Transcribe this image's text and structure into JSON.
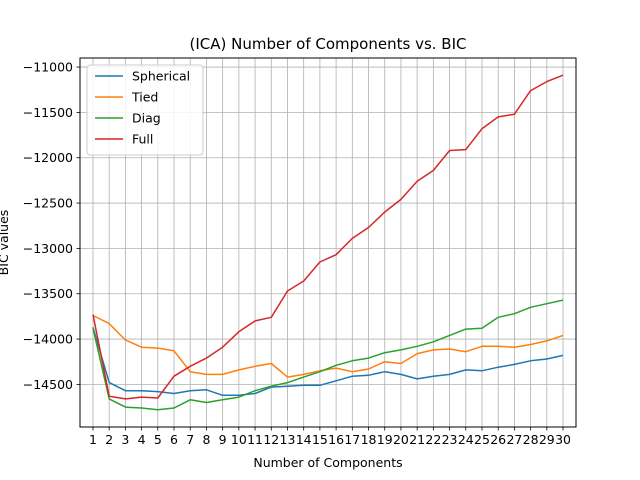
{
  "chart_data": {
    "type": "line",
    "title": "(ICA) Number of Components vs. BIC",
    "xlabel": "Number of Components",
    "ylabel": "BIC values",
    "x": [
      1,
      2,
      3,
      4,
      5,
      6,
      7,
      8,
      9,
      10,
      11,
      12,
      13,
      14,
      15,
      16,
      17,
      18,
      19,
      20,
      21,
      22,
      23,
      24,
      25,
      26,
      27,
      28,
      29,
      30
    ],
    "xlim": [
      0.2,
      30.8
    ],
    "ylim": [
      -14970,
      -10900
    ],
    "yticks": [
      -14500,
      -14000,
      -13500,
      -13000,
      -12500,
      -12000,
      -11500,
      -11000
    ],
    "ytick_labels": [
      "−14500",
      "−14000",
      "−13500",
      "−13000",
      "−12500",
      "−12000",
      "−11500",
      "−11000"
    ],
    "grid": true,
    "legend_position": "top-left",
    "series": [
      {
        "name": "Spherical",
        "color": "#1f77b4",
        "values": [
          -13870,
          -14480,
          -14570,
          -14570,
          -14580,
          -14600,
          -14570,
          -14560,
          -14620,
          -14620,
          -14600,
          -14530,
          -14520,
          -14510,
          -14510,
          -14460,
          -14410,
          -14400,
          -14360,
          -14390,
          -14440,
          -14410,
          -14390,
          -14340,
          -14350,
          -14310,
          -14280,
          -14240,
          -14220,
          -14180
        ]
      },
      {
        "name": "Tied",
        "color": "#ff7f0e",
        "values": [
          -13740,
          -13830,
          -14010,
          -14090,
          -14100,
          -14130,
          -14360,
          -14390,
          -14390,
          -14340,
          -14300,
          -14270,
          -14420,
          -14390,
          -14350,
          -14320,
          -14360,
          -14330,
          -14250,
          -14270,
          -14160,
          -14120,
          -14110,
          -14140,
          -14080,
          -14080,
          -14090,
          -14060,
          -14020,
          -13960
        ]
      },
      {
        "name": "Diag",
        "color": "#2ca02c",
        "values": [
          -13880,
          -14660,
          -14750,
          -14760,
          -14780,
          -14760,
          -14670,
          -14700,
          -14670,
          -14640,
          -14570,
          -14520,
          -14480,
          -14420,
          -14360,
          -14290,
          -14240,
          -14210,
          -14150,
          -14120,
          -14080,
          -14030,
          -13960,
          -13890,
          -13880,
          -13760,
          -13720,
          -13650,
          -13610,
          -13570
        ]
      },
      {
        "name": "Full",
        "color": "#d62728",
        "values": [
          -13730,
          -14630,
          -14660,
          -14640,
          -14650,
          -14410,
          -14300,
          -14210,
          -14090,
          -13920,
          -13800,
          -13760,
          -13470,
          -13360,
          -13150,
          -13070,
          -12890,
          -12770,
          -12600,
          -12460,
          -12260,
          -12140,
          -11920,
          -11910,
          -11680,
          -11550,
          -11520,
          -11260,
          -11160,
          -11090
        ]
      }
    ]
  }
}
